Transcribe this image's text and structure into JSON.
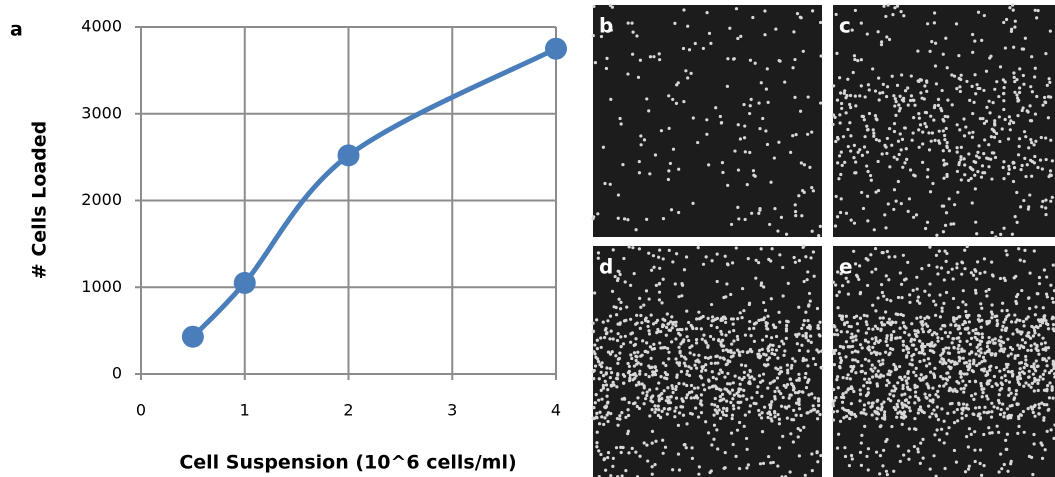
{
  "chart_data": {
    "type": "line",
    "panel_label": "a",
    "xlabel": "Cell Suspension (10^6 cells/ml)",
    "ylabel": "# Cells Loaded",
    "x": [
      0.5,
      1,
      2,
      4
    ],
    "values": [
      430,
      1050,
      2520,
      3750
    ],
    "color": "#4a7ebb",
    "xlim": [
      0,
      4
    ],
    "xticks": [
      0,
      1,
      2,
      3,
      4
    ],
    "ylim": [
      0,
      4000
    ],
    "yticks": [
      0,
      1000,
      2000,
      3000,
      4000
    ],
    "grid": true
  },
  "panels": [
    {
      "label": "b"
    },
    {
      "label": "c"
    },
    {
      "label": "d"
    },
    {
      "label": "e"
    }
  ]
}
